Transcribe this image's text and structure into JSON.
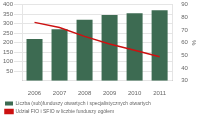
{
  "chart_data": {
    "type": "bar",
    "categories": [
      "2006",
      "2007",
      "2008",
      "2009",
      "2010",
      "2011"
    ],
    "series": [
      {
        "name": "Liczba (sub)funduszy otwartych i specjalistycznych otwartych",
        "type": "bar",
        "color": "#3d6b52",
        "values": [
          220,
          270,
          320,
          345,
          355,
          370
        ]
      },
      {
        "name": "Udział FIO i SFIO w liczbie funduszy ogółem",
        "type": "line",
        "color": "#cc1111",
        "axis": "y2",
        "values": [
          76,
          72,
          65,
          59,
          54,
          49
        ]
      }
    ],
    "ylim": [
      0,
      400
    ],
    "yticks": [
      50,
      100,
      150,
      200,
      250,
      300,
      350,
      400
    ],
    "y2lim": [
      30,
      90
    ],
    "y2ticks": [
      30,
      40,
      50,
      60,
      70,
      80,
      90
    ],
    "y2label": "%",
    "grid": true,
    "legend": "bottom"
  }
}
